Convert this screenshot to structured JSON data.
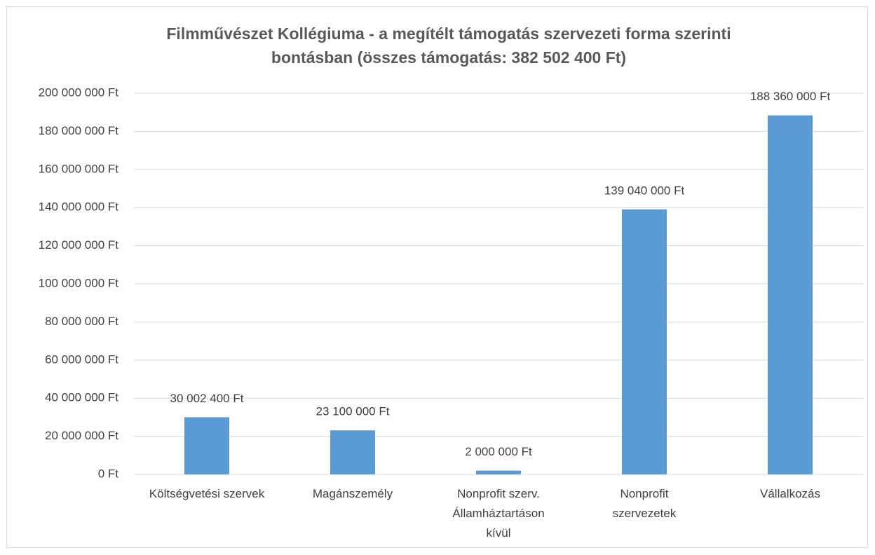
{
  "chart_data": {
    "type": "bar",
    "title": "Filmművészet Kollégiuma - a megítélt támogatás szervezeti forma szerinti bontásban (összes támogatás: 382 502 400 Ft)",
    "categories": [
      "Költségvetési szervek",
      "Magánszemély",
      "Nonprofit szerv.\nÁllamháztartáson\nkívül",
      "Nonprofit\nszervezetek",
      "Vállalkozás"
    ],
    "values": [
      30002400,
      23100000,
      2000000,
      139040000,
      188360000
    ],
    "value_labels": [
      "30 002 400 Ft",
      "23 100 000 Ft",
      "2 000 000 Ft",
      "139 040 000 Ft",
      "188 360 000 Ft"
    ],
    "color": "#5b9bd5",
    "ylim": [
      0,
      200000000
    ],
    "yticks": [
      {
        "value": 0,
        "label": "0 Ft"
      },
      {
        "value": 20000000,
        "label": "20 000 000 Ft"
      },
      {
        "value": 40000000,
        "label": "40 000 000 Ft"
      },
      {
        "value": 60000000,
        "label": "60 000 000 Ft"
      },
      {
        "value": 80000000,
        "label": "80 000 000 Ft"
      },
      {
        "value": 100000000,
        "label": "100 000 000 Ft"
      },
      {
        "value": 120000000,
        "label": "120 000 000 Ft"
      },
      {
        "value": 140000000,
        "label": "140 000 000 Ft"
      },
      {
        "value": 160000000,
        "label": "160 000 000 Ft"
      },
      {
        "value": 180000000,
        "label": "180 000 000 Ft"
      },
      {
        "value": 200000000,
        "label": "200 000 000 Ft"
      }
    ],
    "grid": true
  }
}
